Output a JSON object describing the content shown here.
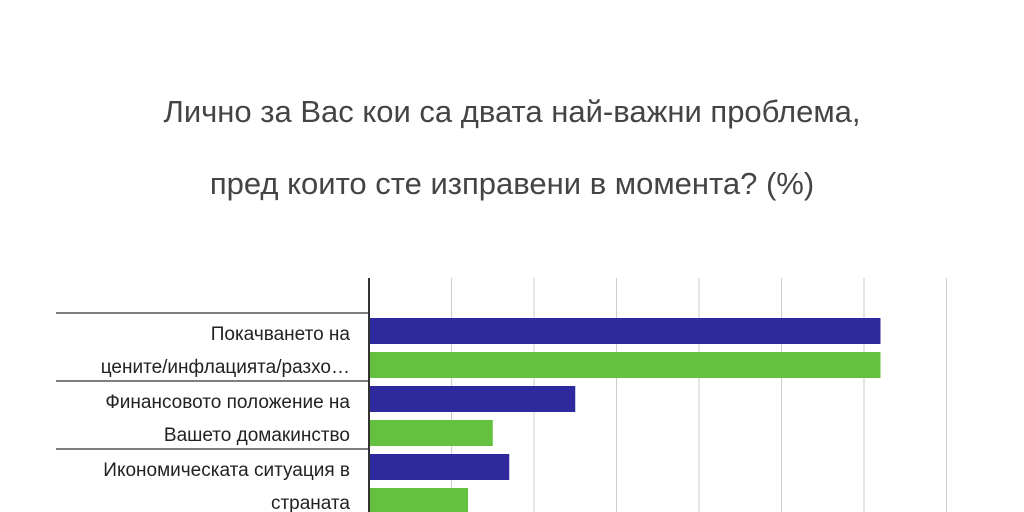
{
  "chart_data": {
    "type": "bar",
    "orientation": "horizontal",
    "title_lines": [
      "Лично за Вас кои са двата най-важни проблема,",
      "пред които сте изправени в момента? (%)"
    ],
    "xlabel": "",
    "ylabel": "",
    "xlim": [
      0,
      70
    ],
    "grid": true,
    "categories": [
      [
        "Покачването на",
        "цените/инфлацията/разхо…"
      ],
      [
        "Финансовото положение на",
        "Вашето домакинство"
      ],
      [
        "Икономическата ситуация в",
        "страната"
      ]
    ],
    "series": [
      {
        "values": [
          62,
          25,
          17
        ],
        "color": "#2e2a9e"
      },
      {
        "values": [
          62,
          15,
          12
        ],
        "color": "#63c13f"
      }
    ]
  }
}
